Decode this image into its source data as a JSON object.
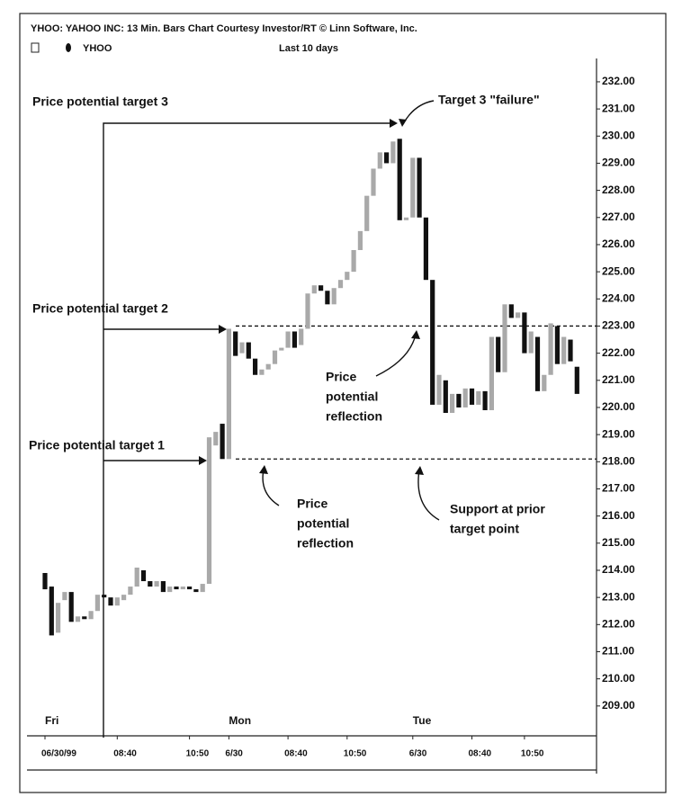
{
  "chart_data": {
    "type": "candlestick",
    "title": "YHOO: YAHOO INC: 13 Min. Bars Chart Courtesy Investor/RT © Linn Software, Inc.",
    "legend": "YHOO",
    "subtitle": "Last 10 days",
    "categories": [
      "06/30/99",
      null,
      null,
      null,
      null,
      null,
      null,
      null,
      null,
      null,
      null,
      "08:40",
      null,
      null,
      null,
      null,
      null,
      null,
      null,
      null,
      null,
      null,
      "10:50",
      null,
      null,
      null,
      null,
      null,
      "6/30",
      null,
      null,
      null,
      null,
      null,
      null,
      null,
      null,
      "08:40",
      null,
      null,
      null,
      null,
      null,
      null,
      null,
      null,
      "10:50",
      null,
      null,
      null,
      null,
      null,
      null,
      null,
      null,
      null,
      "6/30",
      null,
      null,
      null,
      null,
      null,
      null,
      null,
      null,
      "08:40",
      null,
      null,
      null,
      null,
      null,
      null,
      null,
      "10:50",
      null,
      null,
      null,
      null,
      null,
      null,
      null,
      null
    ],
    "days": [
      "Fri",
      null,
      null,
      null,
      null,
      null,
      null,
      null,
      null,
      null,
      null,
      null,
      null,
      null,
      null,
      null,
      null,
      null,
      null,
      null,
      null,
      null,
      null,
      null,
      null,
      null,
      null,
      null,
      "Mon",
      null,
      null,
      null,
      null,
      null,
      null,
      null,
      null,
      null,
      null,
      null,
      null,
      null,
      null,
      null,
      null,
      null,
      null,
      null,
      null,
      null,
      null,
      null,
      null,
      null,
      null,
      null,
      "Tue",
      null,
      null,
      null,
      null,
      null,
      null,
      null,
      null,
      null,
      null,
      null,
      null,
      null,
      null,
      null,
      null,
      null,
      null,
      null,
      null,
      null,
      null,
      null,
      null,
      null
    ],
    "open": [
      213.9,
      213.4,
      211.7,
      212.9,
      213.2,
      212.1,
      212.3,
      212.2,
      212.5,
      213.1,
      213.0,
      212.7,
      212.9,
      213.1,
      213.4,
      214.0,
      213.6,
      213.4,
      213.6,
      213.2,
      213.4,
      213.3,
      213.4,
      213.3,
      213.2,
      213.5,
      218.6,
      219.4,
      218.1,
      222.8,
      222.0,
      222.4,
      221.8,
      221.2,
      221.4,
      221.6,
      222.1,
      222.2,
      222.8,
      222.3,
      222.9,
      224.2,
      224.5,
      224.3,
      223.8,
      224.4,
      224.7,
      225.0,
      225.8,
      226.5,
      227.8,
      228.8,
      229.4,
      229.0,
      229.9,
      226.9,
      227.0,
      229.2,
      227.0,
      224.7,
      220.1,
      221.0,
      219.8,
      220.5,
      220.0,
      220.7,
      220.1,
      220.6,
      219.9,
      222.6,
      221.3,
      223.8,
      223.3,
      223.5,
      222.0,
      222.6,
      220.6,
      221.2,
      223.0,
      221.6,
      222.5,
      221.5
    ],
    "close": [
      213.3,
      211.6,
      212.8,
      213.2,
      212.1,
      212.3,
      212.2,
      212.5,
      213.1,
      213.0,
      212.7,
      213.0,
      213.1,
      213.4,
      214.1,
      213.6,
      213.4,
      213.6,
      213.2,
      213.4,
      213.3,
      213.4,
      213.3,
      213.2,
      213.5,
      218.9,
      219.1,
      218.1,
      222.9,
      221.9,
      222.4,
      221.8,
      221.2,
      221.4,
      221.6,
      222.1,
      222.2,
      222.8,
      222.2,
      222.9,
      224.2,
      224.5,
      224.3,
      223.8,
      224.4,
      224.7,
      225.0,
      225.8,
      226.5,
      227.8,
      228.8,
      229.4,
      229.0,
      229.8,
      226.9,
      227.0,
      229.2,
      227.0,
      224.7,
      220.1,
      221.2,
      219.8,
      220.5,
      220.0,
      220.7,
      220.1,
      220.6,
      219.9,
      222.6,
      221.3,
      223.8,
      223.3,
      223.5,
      222.0,
      222.8,
      220.6,
      221.2,
      223.1,
      221.6,
      222.6,
      221.7,
      220.5
    ],
    "up_color": "#a9a9a9",
    "down_color": "#111111",
    "ylim": [
      207.9,
      232.86
    ],
    "yticks": [
      {
        "value": 209,
        "label": "209.00"
      },
      {
        "value": 210,
        "label": "210.00"
      },
      {
        "value": 211,
        "label": "211.00"
      },
      {
        "value": 212,
        "label": "212.00"
      },
      {
        "value": 213,
        "label": "213.00"
      },
      {
        "value": 214,
        "label": "214.00"
      },
      {
        "value": 215,
        "label": "215.00"
      },
      {
        "value": 216,
        "label": "216.00"
      },
      {
        "value": 217,
        "label": "217.00"
      },
      {
        "value": 218,
        "label": "218.00"
      },
      {
        "value": 219,
        "label": "219.00"
      },
      {
        "value": 220,
        "label": "220.00"
      },
      {
        "value": 221,
        "label": "221.00"
      },
      {
        "value": 222,
        "label": "222.00"
      },
      {
        "value": 223,
        "label": "223.00"
      },
      {
        "value": 224,
        "label": "224.00"
      },
      {
        "value": 225,
        "label": "225.00"
      },
      {
        "value": 226,
        "label": "226.00"
      },
      {
        "value": 227,
        "label": "227.00"
      },
      {
        "value": 228,
        "label": "228.00"
      },
      {
        "value": 229,
        "label": "229.00"
      },
      {
        "value": 230,
        "label": "230.00"
      },
      {
        "value": 231,
        "label": "231.00"
      },
      {
        "value": 232,
        "label": "232.00"
      }
    ],
    "reference_lines": [
      223.0,
      218.1
    ],
    "annotations": {
      "target3": "Price potential target 3",
      "target2": "Price potential target 2",
      "target1": "Price potential target 1",
      "failure": "Target 3 \"failure\"",
      "reflection_upper": [
        "Price",
        "potential",
        "reflection"
      ],
      "reflection_lower": [
        "Price",
        "potential",
        "reflection"
      ],
      "support": [
        "Support at prior",
        "target point"
      ]
    }
  }
}
